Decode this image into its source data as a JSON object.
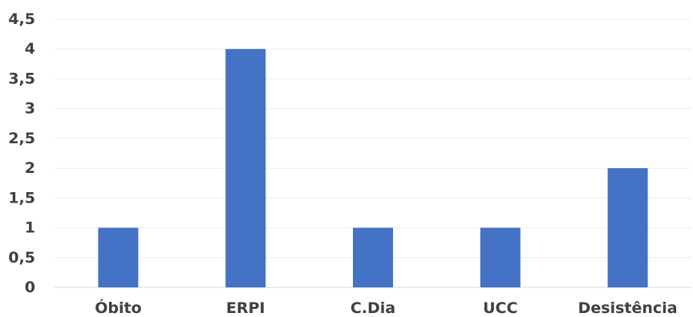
{
  "chart_data": {
    "type": "bar",
    "categories": [
      "Óbito",
      "ERPI",
      "C.Dia",
      "UCC",
      "Desistência"
    ],
    "values": [
      1,
      4,
      1,
      1,
      2
    ],
    "ylim": [
      0,
      4.5
    ],
    "yticks": [
      {
        "value": 0,
        "label": "0"
      },
      {
        "value": 0.5,
        "label": "0,5"
      },
      {
        "value": 1,
        "label": "1"
      },
      {
        "value": 1.5,
        "label": "1,5"
      },
      {
        "value": 2,
        "label": "2"
      },
      {
        "value": 2.5,
        "label": "2,5"
      },
      {
        "value": 3,
        "label": "3"
      },
      {
        "value": 3.5,
        "label": "3,5"
      },
      {
        "value": 4,
        "label": "4"
      },
      {
        "value": 4.5,
        "label": "4,5"
      }
    ],
    "grid": true,
    "legend": "none",
    "bar_color": "#4472C4"
  }
}
